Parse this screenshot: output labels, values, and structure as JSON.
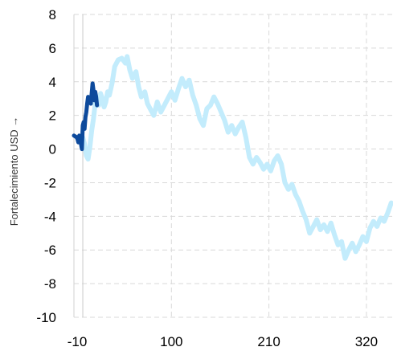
{
  "chart_data": {
    "type": "line",
    "ylabel": "Fortalecimiento USD →",
    "xlabel": "",
    "xlim": [
      -10,
      350
    ],
    "ylim": [
      -10,
      8
    ],
    "x_ticks": [
      -10,
      100,
      210,
      320
    ],
    "y_ticks": [
      8,
      6,
      4,
      2,
      0,
      -2,
      -4,
      -6,
      -8,
      -10
    ],
    "grid": true,
    "grid_style": "dashed",
    "legend": "none",
    "reference_line_x": 0,
    "series": [
      {
        "color": "#c3ecfc",
        "points": [
          [
            0,
            0.7
          ],
          [
            2,
            0.3
          ],
          [
            4,
            -0.4
          ],
          [
            6,
            -0.6
          ],
          [
            8,
            0.1
          ],
          [
            10,
            1.1
          ],
          [
            12,
            1.8
          ],
          [
            14,
            2.7
          ],
          [
            16,
            3.0
          ],
          [
            18,
            2.6
          ],
          [
            20,
            3.3
          ],
          [
            22,
            3.0
          ],
          [
            24,
            2.5
          ],
          [
            26,
            2.8
          ],
          [
            28,
            3.4
          ],
          [
            30,
            3.2
          ],
          [
            33,
            3.9
          ],
          [
            36,
            4.9
          ],
          [
            40,
            5.3
          ],
          [
            44,
            5.4
          ],
          [
            48,
            5.1
          ],
          [
            50,
            5.5
          ],
          [
            53,
            4.7
          ],
          [
            56,
            4.2
          ],
          [
            60,
            4.6
          ],
          [
            63,
            3.7
          ],
          [
            66,
            3.1
          ],
          [
            70,
            3.4
          ],
          [
            73,
            2.7
          ],
          [
            76,
            2.4
          ],
          [
            80,
            2.0
          ],
          [
            84,
            2.8
          ],
          [
            88,
            2.2
          ],
          [
            92,
            2.6
          ],
          [
            96,
            3.0
          ],
          [
            100,
            3.4
          ],
          [
            104,
            2.9
          ],
          [
            108,
            3.6
          ],
          [
            112,
            4.2
          ],
          [
            116,
            3.7
          ],
          [
            120,
            4.1
          ],
          [
            124,
            3.2
          ],
          [
            128,
            2.6
          ],
          [
            132,
            1.8
          ],
          [
            136,
            1.4
          ],
          [
            140,
            2.4
          ],
          [
            144,
            2.6
          ],
          [
            148,
            3.1
          ],
          [
            152,
            2.7
          ],
          [
            156,
            2.2
          ],
          [
            160,
            1.7
          ],
          [
            164,
            1.0
          ],
          [
            168,
            1.4
          ],
          [
            172,
            0.9
          ],
          [
            176,
            1.3
          ],
          [
            180,
            1.6
          ],
          [
            184,
            0.7
          ],
          [
            188,
            -0.5
          ],
          [
            192,
            -0.9
          ],
          [
            196,
            -0.5
          ],
          [
            200,
            -0.8
          ],
          [
            204,
            -1.2
          ],
          [
            208,
            -0.9
          ],
          [
            212,
            -1.3
          ],
          [
            216,
            -0.7
          ],
          [
            220,
            -0.4
          ],
          [
            224,
            -0.9
          ],
          [
            228,
            -2.0
          ],
          [
            232,
            -2.4
          ],
          [
            236,
            -2.1
          ],
          [
            240,
            -2.7
          ],
          [
            244,
            -3.1
          ],
          [
            248,
            -3.7
          ],
          [
            252,
            -4.2
          ],
          [
            256,
            -5.0
          ],
          [
            260,
            -4.6
          ],
          [
            264,
            -4.2
          ],
          [
            268,
            -4.8
          ],
          [
            272,
            -4.5
          ],
          [
            276,
            -4.9
          ],
          [
            280,
            -4.4
          ],
          [
            284,
            -5.1
          ],
          [
            288,
            -5.7
          ],
          [
            292,
            -5.5
          ],
          [
            296,
            -6.5
          ],
          [
            300,
            -6.0
          ],
          [
            304,
            -5.6
          ],
          [
            308,
            -6.1
          ],
          [
            312,
            -5.7
          ],
          [
            316,
            -5.2
          ],
          [
            320,
            -5.5
          ],
          [
            324,
            -4.7
          ],
          [
            328,
            -4.3
          ],
          [
            332,
            -4.6
          ],
          [
            336,
            -4.1
          ],
          [
            340,
            -4.3
          ],
          [
            344,
            -3.8
          ],
          [
            348,
            -3.2
          ]
        ]
      },
      {
        "color": "#0d4a9c",
        "points": [
          [
            -10,
            0.8
          ],
          [
            -7,
            0.7
          ],
          [
            -6,
            0.6
          ],
          [
            -5,
            0.4
          ],
          [
            -4,
            0.8
          ],
          [
            -3,
            0.6
          ],
          [
            -2,
            0.3
          ],
          [
            -1,
            0.0
          ],
          [
            0,
            1.4
          ],
          [
            1,
            1.6
          ],
          [
            2,
            1.2
          ],
          [
            3,
            1.9
          ],
          [
            4,
            2.2
          ],
          [
            5,
            2.7
          ],
          [
            6,
            3.1
          ],
          [
            7,
            2.9
          ],
          [
            8,
            3.0
          ],
          [
            9,
            2.7
          ],
          [
            10,
            3.3
          ],
          [
            11,
            3.9
          ],
          [
            12,
            3.5
          ],
          [
            13,
            2.9
          ],
          [
            14,
            3.4
          ],
          [
            15,
            3.1
          ],
          [
            16,
            2.6
          ]
        ]
      }
    ]
  }
}
